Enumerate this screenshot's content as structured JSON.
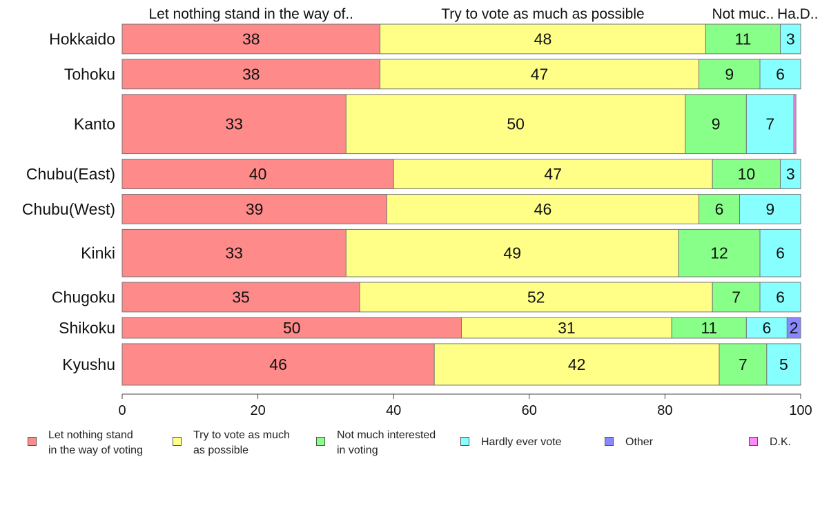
{
  "chart_data": {
    "type": "bar",
    "orientation": "horizontal-stacked",
    "categories": [
      "Hokkaido",
      "Tohoku",
      "Kanto",
      "Chubu(East)",
      "Chubu(West)",
      "Kinki",
      "Chugoku",
      "Shikoku",
      "Kyushu"
    ],
    "series": [
      {
        "name": "Let nothing stand\nin the way of voting",
        "header": "Let nothing stand in the way of..",
        "color": "#ff8a8a",
        "values": [
          38,
          38,
          33,
          40,
          39,
          33,
          35,
          50,
          46
        ],
        "labels": [
          "38",
          "38",
          "33",
          "40",
          "39",
          "33",
          "35",
          "50",
          "46"
        ]
      },
      {
        "name": "Try to vote as much\nas possible",
        "header": "Try to vote as much as possible",
        "color": "#ffff88",
        "values": [
          48,
          47,
          50,
          47,
          46,
          49,
          52,
          31,
          42
        ],
        "labels": [
          "48",
          "47",
          "50",
          "47",
          "46",
          "49",
          "52",
          "31",
          "42"
        ]
      },
      {
        "name": "Not much interested\nin voting",
        "header": "Not muc..",
        "color": "#88ff88",
        "values": [
          11,
          9,
          9,
          10,
          6,
          12,
          7,
          11,
          7
        ],
        "labels": [
          "11",
          "9",
          "9",
          "10",
          "6",
          "12",
          "7",
          "11",
          "7"
        ]
      },
      {
        "name": "Hardly ever vote",
        "header": "Ha..",
        "color": "#88ffff",
        "values": [
          3,
          6,
          7,
          3,
          9,
          6,
          6,
          6,
          5
        ],
        "labels": [
          "3",
          "6",
          "7",
          "3",
          "9",
          "6",
          "6",
          "6",
          "5"
        ]
      },
      {
        "name": "Other",
        "header": "",
        "color": "#8888ff",
        "values": [
          0,
          0,
          0,
          0,
          0,
          0,
          0,
          2,
          0
        ],
        "labels": [
          "",
          "",
          "",
          "",
          "",
          "",
          "",
          "2",
          ""
        ]
      },
      {
        "name": "D.K.",
        "header": "D..",
        "color": "#ff88ff",
        "values": [
          0,
          0,
          0.3,
          0,
          0,
          0,
          0,
          0,
          0
        ],
        "labels": [
          "",
          "",
          "",
          "",
          "",
          "",
          "",
          "",
          ""
        ]
      }
    ],
    "row_weights": [
      1,
      1,
      2,
      1,
      1,
      1.6,
      1,
      0.7,
      1.4
    ],
    "xlim": [
      0,
      100
    ],
    "xticks": [
      "0",
      "20",
      "40",
      "60",
      "80",
      "100"
    ],
    "xlabel": "",
    "ylabel": "",
    "legend_position": "bottom",
    "grid": false
  }
}
